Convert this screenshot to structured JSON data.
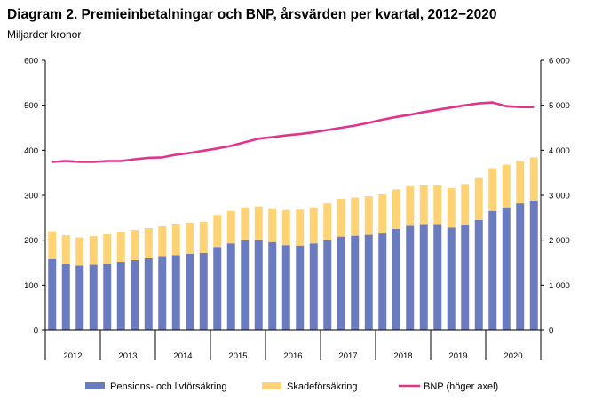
{
  "title": "Diagram 2. Premieinbetalningar och BNP, årsvärden per kvartal, 2012−2020",
  "subtitle": "Miljarder kronor",
  "colors": {
    "pension": "#6b7bbf",
    "skade": "#fdd375",
    "bnp": "#e0338a",
    "axis": "#000000"
  },
  "chart_data": {
    "type": "bar",
    "stacked": true,
    "years": [
      "2012",
      "2013",
      "2014",
      "2015",
      "2016",
      "2017",
      "2018",
      "2019",
      "2020"
    ],
    "ylim_left": [
      0,
      600
    ],
    "ylim_right": [
      0,
      6000
    ],
    "yticks_left": [
      "0",
      "100",
      "200",
      "300",
      "400",
      "500",
      "600"
    ],
    "yticks_right": [
      "0",
      "1 000",
      "2 000",
      "3 000",
      "4 000",
      "5 000",
      "6 000"
    ],
    "grid": false,
    "legend_position": "bottom",
    "series": [
      {
        "name": "Pensions- och livförsäkring",
        "axis": "left",
        "kind": "bar",
        "values": [
          158,
          148,
          143,
          145,
          148,
          152,
          156,
          160,
          163,
          167,
          170,
          172,
          185,
          193,
          200,
          200,
          196,
          189,
          188,
          193,
          200,
          208,
          210,
          212,
          215,
          225,
          232,
          234,
          234,
          228,
          233,
          245,
          265,
          273,
          282,
          288
        ]
      },
      {
        "name": "Skadeförsäkring",
        "axis": "left",
        "kind": "bar",
        "values": [
          62,
          63,
          63,
          64,
          65,
          66,
          67,
          67,
          68,
          68,
          69,
          69,
          71,
          72,
          73,
          75,
          75,
          78,
          80,
          80,
          82,
          84,
          85,
          86,
          87,
          88,
          88,
          88,
          88,
          88,
          92,
          93,
          95,
          95,
          95,
          96
        ]
      },
      {
        "name": "BNP (höger axel)",
        "axis": "right",
        "kind": "line",
        "values": [
          3740,
          3760,
          3740,
          3740,
          3760,
          3760,
          3800,
          3830,
          3840,
          3900,
          3940,
          3990,
          4040,
          4100,
          4180,
          4260,
          4290,
          4330,
          4360,
          4400,
          4450,
          4500,
          4550,
          4610,
          4680,
          4740,
          4790,
          4850,
          4900,
          4950,
          5000,
          5040,
          5060,
          4980,
          4960,
          4960
        ]
      }
    ]
  }
}
